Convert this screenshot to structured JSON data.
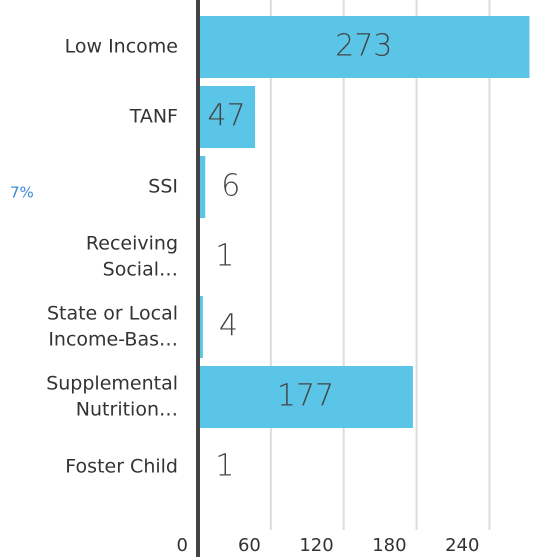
{
  "chart_data": {
    "type": "bar",
    "orientation": "horizontal",
    "categories": [
      [
        "Low Income"
      ],
      [
        "TANF"
      ],
      [
        "SSI"
      ],
      [
        "Receiving",
        "Social…"
      ],
      [
        "State or Local",
        "Income-Bas…"
      ],
      [
        "Supplemental",
        "Nutrition…"
      ],
      [
        "Foster Child"
      ]
    ],
    "values": [
      273,
      47,
      6,
      1,
      4,
      177,
      1
    ],
    "color": "#5bc5e8",
    "xlim": [
      0,
      280
    ],
    "xticks": [
      0,
      60,
      120,
      180,
      240
    ],
    "grid": true,
    "annotation": "7%"
  }
}
